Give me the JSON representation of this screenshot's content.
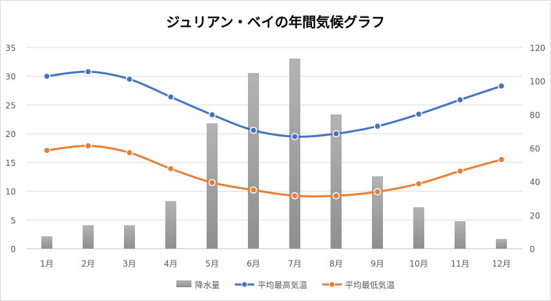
{
  "chart_data": {
    "type": "bar+line",
    "title": "ジュリアン・ベイの年間気候グラフ",
    "categories": [
      "1月",
      "2月",
      "3月",
      "4月",
      "5月",
      "6月",
      "7月",
      "8月",
      "9月",
      "10月",
      "11月",
      "12月"
    ],
    "y_left": {
      "range": [
        0,
        35
      ],
      "ticks": [
        0,
        5,
        10,
        15,
        20,
        25,
        30,
        35
      ]
    },
    "y_right": {
      "range": [
        0,
        120
      ],
      "ticks": [
        0,
        20,
        40,
        60,
        80,
        100,
        120
      ]
    },
    "grid": true,
    "legend_position": "bottom",
    "series": [
      {
        "name": "降水量",
        "type": "bar",
        "axis": "right",
        "color": "#a6a6a6",
        "values": [
          7.4,
          14,
          14,
          28.4,
          74.8,
          104.8,
          113.4,
          80.1,
          43.2,
          24.7,
          16.4,
          5.8
        ]
      },
      {
        "name": "平均最高気温",
        "type": "line",
        "axis": "left",
        "color": "#4472c4",
        "values": [
          30.0,
          30.8,
          29.5,
          26.4,
          23.3,
          20.6,
          19.5,
          20.0,
          21.3,
          23.4,
          25.9,
          28.3
        ]
      },
      {
        "name": "平均最低気温",
        "type": "line",
        "axis": "left",
        "color": "#ed7d31",
        "values": [
          17.1,
          17.9,
          16.7,
          13.9,
          11.5,
          10.2,
          9.2,
          9.2,
          9.9,
          11.3,
          13.5,
          15.5
        ]
      }
    ]
  }
}
